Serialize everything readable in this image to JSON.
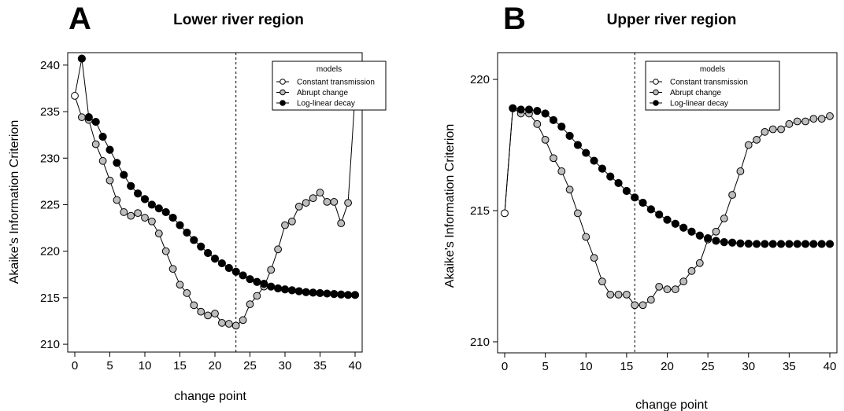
{
  "chart_data": [
    {
      "type": "line",
      "panel_letter": "A",
      "title": "Lower river region",
      "xlabel": "change point",
      "ylabel": "Akaike's Information Criterion",
      "xlim": [
        0,
        40
      ],
      "ylim": [
        209.5,
        241
      ],
      "x_ticks": [
        0,
        5,
        10,
        15,
        20,
        25,
        30,
        35,
        40
      ],
      "y_ticks": [
        210,
        215,
        220,
        225,
        230,
        235,
        240
      ],
      "vline": 23,
      "grid": false,
      "legend": {
        "title": "models",
        "position": "top-right"
      },
      "series": [
        {
          "name": "Constant transmission",
          "fill": "#ffffff",
          "points": [
            [
              0,
              236.7
            ]
          ]
        },
        {
          "name": "Abrupt change",
          "fill": "#bdbdbd",
          "x": [
            1,
            2,
            3,
            4,
            5,
            6,
            7,
            8,
            9,
            10,
            11,
            12,
            13,
            14,
            15,
            16,
            17,
            18,
            19,
            20,
            21,
            22,
            23,
            24,
            25,
            26,
            27,
            28,
            29,
            30,
            31,
            32,
            33,
            34,
            35,
            36,
            37,
            38,
            39,
            40
          ],
          "values": [
            234.4,
            234.1,
            231.5,
            229.7,
            227.6,
            225.5,
            224.2,
            223.8,
            224.1,
            223.6,
            223.2,
            221.9,
            220.0,
            218.1,
            216.4,
            215.5,
            214.2,
            213.5,
            213.1,
            213.3,
            212.3,
            212.2,
            212.0,
            212.6,
            214.3,
            215.2,
            216.2,
            218.0,
            220.2,
            222.8,
            223.2,
            224.8,
            225.2,
            225.7,
            226.3,
            225.3,
            225.3,
            223.0,
            225.2,
            236.8
          ]
        },
        {
          "name": "Log-linear decay",
          "fill": "#000000",
          "x": [
            1,
            2,
            3,
            4,
            5,
            6,
            7,
            8,
            9,
            10,
            11,
            12,
            13,
            14,
            15,
            16,
            17,
            18,
            19,
            20,
            21,
            22,
            23,
            24,
            25,
            26,
            27,
            28,
            29,
            30,
            31,
            32,
            33,
            34,
            35,
            36,
            37,
            38,
            39,
            40
          ],
          "values": [
            240.7,
            234.4,
            233.9,
            232.3,
            230.9,
            229.5,
            228.2,
            227.0,
            226.2,
            225.6,
            225.0,
            224.6,
            224.2,
            223.6,
            222.8,
            222.0,
            221.2,
            220.5,
            219.8,
            219.2,
            218.7,
            218.2,
            217.8,
            217.4,
            217.0,
            216.7,
            216.5,
            216.2,
            216.0,
            215.9,
            215.8,
            215.7,
            215.6,
            215.55,
            215.5,
            215.45,
            215.4,
            215.35,
            215.3,
            215.3
          ]
        }
      ]
    },
    {
      "type": "line",
      "panel_letter": "B",
      "title": "Upper river region",
      "xlabel": "change point",
      "ylabel": "Akaike's Information Criterion",
      "xlim": [
        0,
        40
      ],
      "ylim": [
        209.7,
        220.9
      ],
      "x_ticks": [
        0,
        5,
        10,
        15,
        20,
        25,
        30,
        35,
        40
      ],
      "y_ticks": [
        210,
        215,
        220
      ],
      "vline": 16,
      "grid": false,
      "legend": {
        "title": "models",
        "position": "top-right"
      },
      "series": [
        {
          "name": "Constant transmission",
          "fill": "#ffffff",
          "points": [
            [
              0,
              214.9
            ]
          ]
        },
        {
          "name": "Abrupt change",
          "fill": "#bdbdbd",
          "x": [
            1,
            2,
            3,
            4,
            5,
            6,
            7,
            8,
            9,
            10,
            11,
            12,
            13,
            14,
            15,
            16,
            17,
            18,
            19,
            20,
            21,
            22,
            23,
            24,
            25,
            26,
            27,
            28,
            29,
            30,
            31,
            32,
            33,
            34,
            35,
            36,
            37,
            38,
            39,
            40
          ],
          "values": [
            218.9,
            218.7,
            218.7,
            218.3,
            217.7,
            217.0,
            216.5,
            215.8,
            214.9,
            214.0,
            213.2,
            212.3,
            211.8,
            211.8,
            211.8,
            211.4,
            211.4,
            211.6,
            212.1,
            212.0,
            212.0,
            212.3,
            212.7,
            213.0,
            213.9,
            214.2,
            214.7,
            215.6,
            216.5,
            217.5,
            217.7,
            218.0,
            218.1,
            218.1,
            218.3,
            218.4,
            218.4,
            218.5,
            218.5,
            218.6
          ]
        },
        {
          "name": "Log-linear decay",
          "fill": "#000000",
          "x": [
            1,
            2,
            3,
            4,
            5,
            6,
            7,
            8,
            9,
            10,
            11,
            12,
            13,
            14,
            15,
            16,
            17,
            18,
            19,
            20,
            21,
            22,
            23,
            24,
            25,
            26,
            27,
            28,
            29,
            30,
            31,
            32,
            33,
            34,
            35,
            36,
            37,
            38,
            39,
            40
          ],
          "values": [
            218.9,
            218.85,
            218.85,
            218.8,
            218.7,
            218.45,
            218.2,
            217.85,
            217.5,
            217.2,
            216.9,
            216.6,
            216.3,
            216.05,
            215.75,
            215.5,
            215.3,
            215.05,
            214.85,
            214.65,
            214.5,
            214.35,
            214.2,
            214.05,
            213.95,
            213.85,
            213.8,
            213.78,
            213.75,
            213.74,
            213.73,
            213.73,
            213.73,
            213.73,
            213.73,
            213.73,
            213.73,
            213.73,
            213.73,
            213.73
          ]
        }
      ]
    }
  ]
}
